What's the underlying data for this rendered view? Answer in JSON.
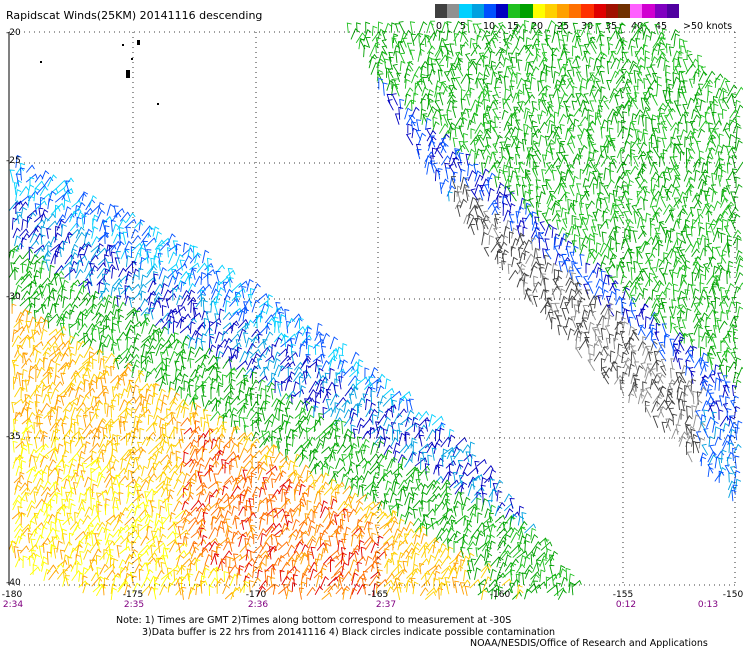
{
  "title": "Rapidscat Winds(25KM) 20141116 descending",
  "colorbar": {
    "colors": [
      "#404040",
      "#909090",
      "#00d0ff",
      "#00a0e0",
      "#0050ff",
      "#0000c0",
      "#20c020",
      "#00a000",
      "#ffff00",
      "#ffd000",
      "#ffa000",
      "#ff7000",
      "#ff3000",
      "#e00000",
      "#a01000",
      "#703000",
      "#ff60ff",
      "#d000d0",
      "#8000c0",
      "#5000a0"
    ],
    "labels": [
      "0",
      "5",
      "10",
      "15",
      "20",
      "25",
      "30",
      "35",
      "40",
      "45"
    ],
    "unit": ">50 knots"
  },
  "lat_labels": [
    "-20",
    "-25",
    "-30",
    "-35",
    "-40"
  ],
  "lon_labels": [
    "-180",
    "-175",
    "-170",
    "-165",
    "-160",
    "-155",
    "-150"
  ],
  "time_labels": [
    "2:34",
    "2:35",
    "2:36",
    "2:37",
    "0:12",
    "0:13"
  ],
  "notes": [
    "Note: 1) Times are GMT 2)Times along bottom correspond to measurement at -30S",
    "3)Data buffer is 22 hrs from 20141116 4) Black circles indicate possible contamination",
    "NOAA/NESDIS/Office of Research and Applications"
  ]
}
